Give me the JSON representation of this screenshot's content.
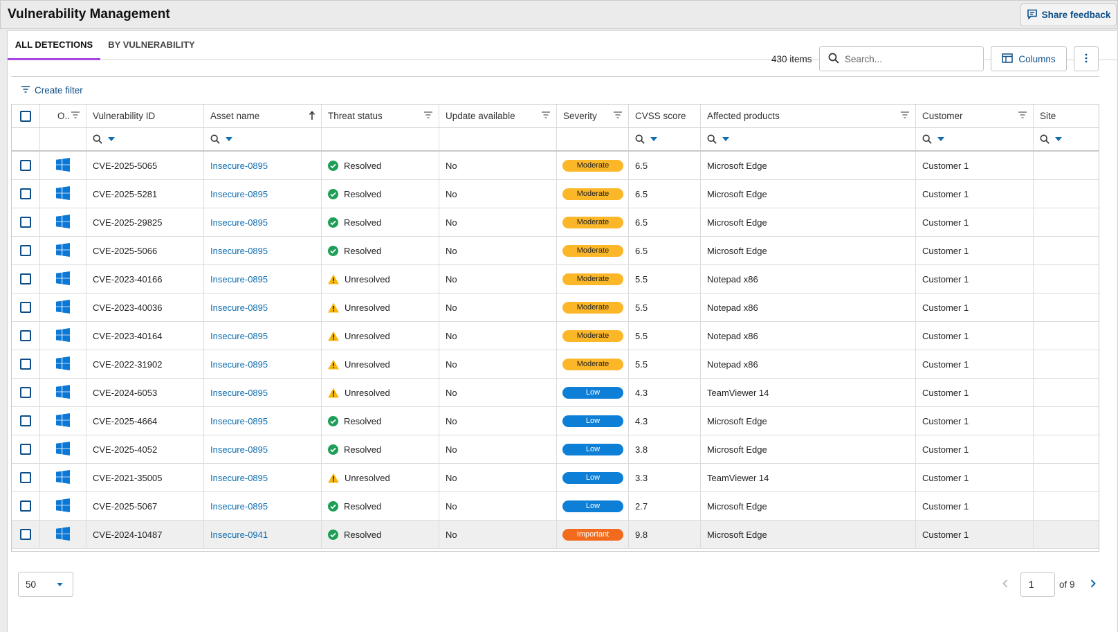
{
  "app": {
    "title": "Vulnerability Management",
    "feedback_label": "Share feedback"
  },
  "tabs": [
    {
      "label": "ALL DETECTIONS",
      "active": true
    },
    {
      "label": "BY VULNERABILITY",
      "active": false
    }
  ],
  "toolbar": {
    "item_count": "430 items",
    "search_placeholder": "Search...",
    "columns_label": "Columns",
    "create_filter_label": "Create filter"
  },
  "columns": {
    "os": "O..",
    "vuln_id": "Vulnerability ID",
    "asset": "Asset name",
    "threat": "Threat status",
    "update": "Update available",
    "severity": "Severity",
    "cvss": "CVSS score",
    "products": "Affected products",
    "customer": "Customer",
    "site": "Site"
  },
  "colors": {
    "accent": "#a845e0",
    "link": "#0d6db0",
    "moderate": "#fbb728",
    "low": "#0d7fd7",
    "important": "#f26b1d",
    "resolved": "#1e9e57",
    "unresolved": "#f5b50a"
  },
  "rows": [
    {
      "os_icon": "windows-icon",
      "vuln_id": "CVE-2025-5065",
      "asset": "Insecure-0895",
      "status": "Resolved",
      "status_icon": "check-circle-icon",
      "update": "No",
      "severity": "Moderate",
      "cvss": "6.5",
      "product": "Microsoft Edge",
      "customer": "Customer 1",
      "site": ""
    },
    {
      "os_icon": "windows-icon",
      "vuln_id": "CVE-2025-5281",
      "asset": "Insecure-0895",
      "status": "Resolved",
      "status_icon": "check-circle-icon",
      "update": "No",
      "severity": "Moderate",
      "cvss": "6.5",
      "product": "Microsoft Edge",
      "customer": "Customer 1",
      "site": ""
    },
    {
      "os_icon": "windows-icon",
      "vuln_id": "CVE-2025-29825",
      "asset": "Insecure-0895",
      "status": "Resolved",
      "status_icon": "check-circle-icon",
      "update": "No",
      "severity": "Moderate",
      "cvss": "6.5",
      "product": "Microsoft Edge",
      "customer": "Customer 1",
      "site": ""
    },
    {
      "os_icon": "windows-icon",
      "vuln_id": "CVE-2025-5066",
      "asset": "Insecure-0895",
      "status": "Resolved",
      "status_icon": "check-circle-icon",
      "update": "No",
      "severity": "Moderate",
      "cvss": "6.5",
      "product": "Microsoft Edge",
      "customer": "Customer 1",
      "site": ""
    },
    {
      "os_icon": "windows-icon",
      "vuln_id": "CVE-2023-40166",
      "asset": "Insecure-0895",
      "status": "Unresolved",
      "status_icon": "warning-icon",
      "update": "No",
      "severity": "Moderate",
      "cvss": "5.5",
      "product": "Notepad x86",
      "customer": "Customer 1",
      "site": ""
    },
    {
      "os_icon": "windows-icon",
      "vuln_id": "CVE-2023-40036",
      "asset": "Insecure-0895",
      "status": "Unresolved",
      "status_icon": "warning-icon",
      "update": "No",
      "severity": "Moderate",
      "cvss": "5.5",
      "product": "Notepad x86",
      "customer": "Customer 1",
      "site": ""
    },
    {
      "os_icon": "windows-icon",
      "vuln_id": "CVE-2023-40164",
      "asset": "Insecure-0895",
      "status": "Unresolved",
      "status_icon": "warning-icon",
      "update": "No",
      "severity": "Moderate",
      "cvss": "5.5",
      "product": "Notepad x86",
      "customer": "Customer 1",
      "site": ""
    },
    {
      "os_icon": "windows-icon",
      "vuln_id": "CVE-2022-31902",
      "asset": "Insecure-0895",
      "status": "Unresolved",
      "status_icon": "warning-icon",
      "update": "No",
      "severity": "Moderate",
      "cvss": "5.5",
      "product": "Notepad x86",
      "customer": "Customer 1",
      "site": ""
    },
    {
      "os_icon": "windows-icon",
      "vuln_id": "CVE-2024-6053",
      "asset": "Insecure-0895",
      "status": "Unresolved",
      "status_icon": "warning-icon",
      "update": "No",
      "severity": "Low",
      "cvss": "4.3",
      "product": "TeamViewer 14",
      "customer": "Customer 1",
      "site": ""
    },
    {
      "os_icon": "windows-icon",
      "vuln_id": "CVE-2025-4664",
      "asset": "Insecure-0895",
      "status": "Resolved",
      "status_icon": "check-circle-icon",
      "update": "No",
      "severity": "Low",
      "cvss": "4.3",
      "product": "Microsoft Edge",
      "customer": "Customer 1",
      "site": ""
    },
    {
      "os_icon": "windows-icon",
      "vuln_id": "CVE-2025-4052",
      "asset": "Insecure-0895",
      "status": "Resolved",
      "status_icon": "check-circle-icon",
      "update": "No",
      "severity": "Low",
      "cvss": "3.8",
      "product": "Microsoft Edge",
      "customer": "Customer 1",
      "site": ""
    },
    {
      "os_icon": "windows-icon",
      "vuln_id": "CVE-2021-35005",
      "asset": "Insecure-0895",
      "status": "Unresolved",
      "status_icon": "warning-icon",
      "update": "No",
      "severity": "Low",
      "cvss": "3.3",
      "product": "TeamViewer 14",
      "customer": "Customer 1",
      "site": ""
    },
    {
      "os_icon": "windows-icon",
      "vuln_id": "CVE-2025-5067",
      "asset": "Insecure-0895",
      "status": "Resolved",
      "status_icon": "check-circle-icon",
      "update": "No",
      "severity": "Low",
      "cvss": "2.7",
      "product": "Microsoft Edge",
      "customer": "Customer 1",
      "site": ""
    },
    {
      "os_icon": "windows-icon",
      "vuln_id": "CVE-2024-10487",
      "asset": "Insecure-0941",
      "status": "Resolved",
      "status_icon": "check-circle-icon",
      "update": "No",
      "severity": "Important",
      "cvss": "9.8",
      "product": "Microsoft Edge",
      "customer": "Customer 1",
      "site": "",
      "highlighted": true
    }
  ],
  "pagination": {
    "page_size": "50",
    "current_page": "1",
    "of_label": "of 9"
  }
}
